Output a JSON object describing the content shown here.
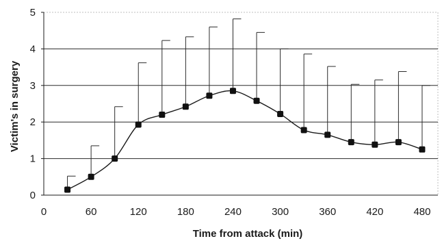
{
  "chart_data": {
    "type": "line",
    "xlabel": "Time from attack  (min)",
    "ylabel": "Victim's in surgery",
    "xlim": [
      0,
      500
    ],
    "ylim": [
      0,
      5
    ],
    "x_ticks": [
      0,
      60,
      120,
      180,
      240,
      300,
      360,
      420,
      480
    ],
    "y_ticks": [
      0,
      1,
      2,
      3,
      4,
      5
    ],
    "grid": "horizontal",
    "legend": "none",
    "marker": "square",
    "smooth": true,
    "series": [
      {
        "x": [
          30,
          60,
          90,
          120,
          150,
          180,
          210,
          240,
          270,
          300,
          330,
          360,
          390,
          420,
          450,
          480
        ],
        "y": [
          0.15,
          0.5,
          1.0,
          1.93,
          2.2,
          2.42,
          2.72,
          2.85,
          2.58,
          2.22,
          1.78,
          1.65,
          1.45,
          1.38,
          1.45,
          1.25
        ],
        "error_upper": [
          0.52,
          1.35,
          2.42,
          3.62,
          4.23,
          4.33,
          4.6,
          4.82,
          4.45,
          4.0,
          3.86,
          3.52,
          3.03,
          3.15,
          3.38,
          3.0
        ]
      }
    ]
  }
}
